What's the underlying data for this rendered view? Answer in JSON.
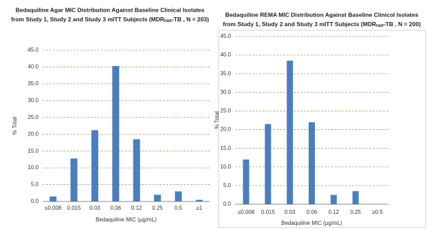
{
  "chart_data": [
    {
      "type": "bar",
      "title": [
        "Bedaquiline Agar MIC Distribution Against  Baseline Clinical  Isolates",
        "from Study 1, Study 2 and Study 3 mITT Subjects (MDR",
        "H&R",
        "-TB , N = 203)"
      ],
      "categories": [
        "≤0.008",
        "0.015",
        "0.03",
        "0.06",
        "0.12",
        "0.25",
        "0.5",
        "≥1"
      ],
      "values": [
        1.5,
        12.8,
        21.2,
        40.3,
        18.5,
        2.0,
        3.0,
        0.5
      ],
      "color": "#4a7ebf",
      "ylim": [
        0,
        45
      ],
      "yticks": [
        {
          "value": 0,
          "label": "0.0"
        },
        {
          "value": 5,
          "label": "5.0"
        },
        {
          "value": 10,
          "label": "10.0"
        },
        {
          "value": 15,
          "label": "15.0"
        },
        {
          "value": 20,
          "label": "20.0"
        },
        {
          "value": 25,
          "label": "25.0"
        },
        {
          "value": 30,
          "label": "30.0"
        },
        {
          "value": 35,
          "label": "35.0"
        },
        {
          "value": 40,
          "label": "40.0"
        },
        {
          "value": 45,
          "label": "45.0"
        }
      ],
      "ylabel": "% Total",
      "xlabel": "Bedaquiline MIC (µg/mL)",
      "grid": true
    },
    {
      "type": "bar",
      "title": [
        "Bedaquiline REMA MIC Distribution Against  Baseline Clinicol  Isolates",
        "from Study 1, Study 2 and Study 3 mITT Subjects (MDR",
        "H&R",
        "-TB , N = 200)"
      ],
      "categories": [
        "≤0.008",
        "0.015",
        "0.03",
        "0.06",
        "0.12",
        "0.25",
        "≥0.5"
      ],
      "values": [
        12.0,
        21.5,
        38.5,
        22.0,
        2.5,
        3.5,
        0
      ],
      "color": "#4a7ebf",
      "ylim": [
        0,
        45
      ],
      "yticks": [
        {
          "value": 0,
          "label": "0.0"
        },
        {
          "value": 5,
          "label": "5.0"
        },
        {
          "value": 10,
          "label": "10.0"
        },
        {
          "value": 15,
          "label": "15.0"
        },
        {
          "value": 20,
          "label": "20.0"
        },
        {
          "value": 25,
          "label": "25.0"
        },
        {
          "value": 30,
          "label": "30.0"
        },
        {
          "value": 35,
          "label": "35.0"
        },
        {
          "value": 40,
          "label": "40.0"
        },
        {
          "value": 45,
          "label": "45.0"
        }
      ],
      "ylabel": "% Total",
      "xlabel": "Bedaquiline MIC (µg/mL)",
      "grid": true
    }
  ]
}
